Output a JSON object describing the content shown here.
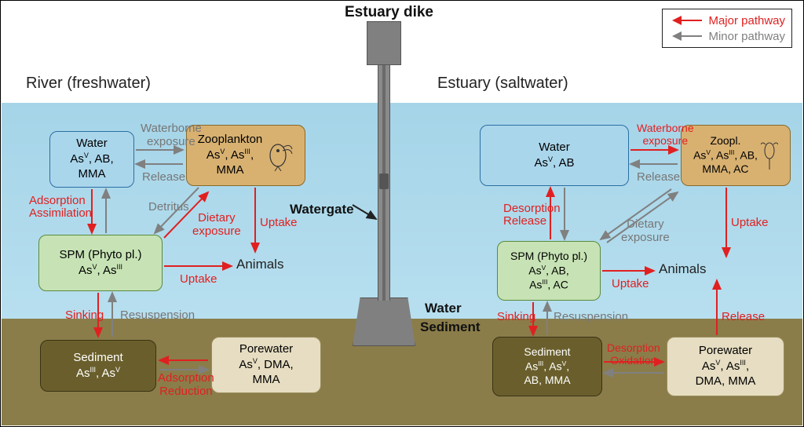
{
  "colors": {
    "major": "#e02020",
    "minor": "#808080",
    "water_fill": "#aad6ec",
    "water_stroke": "#2a6fa3",
    "zoo_fill": "#d8b171",
    "zoo_stroke": "#8a6a2a",
    "spm_fill": "#c7e3b5",
    "spm_stroke": "#5a8a3a",
    "sed_fill": "#6a5f2c",
    "sed_stroke": "#3a3214",
    "pore_fill": "#e6ddc2",
    "pore_stroke": "#9a8d5a",
    "sky": "#ffffff",
    "water_bg": "#b0dbee",
    "sediment_bg": "#8a7d4a"
  },
  "title": "Estuary dike",
  "left_section": "River (freshwater)",
  "right_section": "Estuary (saltwater)",
  "legend": {
    "major": "Major pathway",
    "minor": "Minor pathway"
  },
  "river": {
    "water": {
      "title": "Water",
      "sub": "As<sup>V</sup>, AB,<br>MMA"
    },
    "zoo": {
      "title": "Zooplankton",
      "sub": "As<sup>V</sup>, As<sup>III</sup>,<br>MMA"
    },
    "spm": {
      "title": "SPM (Phyto pl.)",
      "sub": "As<sup>V</sup>, As<sup>III</sup>"
    },
    "sed": {
      "title": "Sediment",
      "sub": "As<sup>III</sup>, As<sup>V</sup>"
    },
    "pore": {
      "title": "Porewater",
      "sub": "As<sup>V</sup>, DMA,<br>MMA"
    },
    "animals": "Animals"
  },
  "estuary": {
    "water": {
      "title": "Water",
      "sub": "As<sup>V</sup>, AB"
    },
    "zoo": {
      "title": "Zoopl.",
      "sub": "As<sup>V</sup>, As<sup>III</sup>, AB,<br>MMA, AC"
    },
    "spm": {
      "title": "SPM (Phyto pl.)",
      "sub": "As<sup>V</sup>, AB,<br>As<sup>III</sup>, AC"
    },
    "sed": {
      "title": "Sediment",
      "sub": "As<sup>III</sup>, As<sup>V</sup>,<br>AB, MMA"
    },
    "pore": {
      "title": "Porewater",
      "sub": "As<sup>V</sup>, As<sup>III</sup>,<br>DMA, MMA"
    },
    "animals": "Animals"
  },
  "labels": {
    "waterborne_exposure": "Waterborne<br>exposure",
    "release": "Release",
    "adsorption": "Adsorption",
    "assimilation": "Assimilation",
    "detritus": "Detritus",
    "dietary_exposure": "Dietary<br>exposure",
    "uptake": "Uptake",
    "sinking": "Sinking",
    "resuspension": "Resuspension",
    "adsorption_reduction": "Adsorption<br>Reduction",
    "desorption": "Desorption",
    "desorption_oxidation": "Desorption<br>Oxidation",
    "watergate": "Watergate",
    "water_label": "Water",
    "sediment_label": "Sediment"
  }
}
